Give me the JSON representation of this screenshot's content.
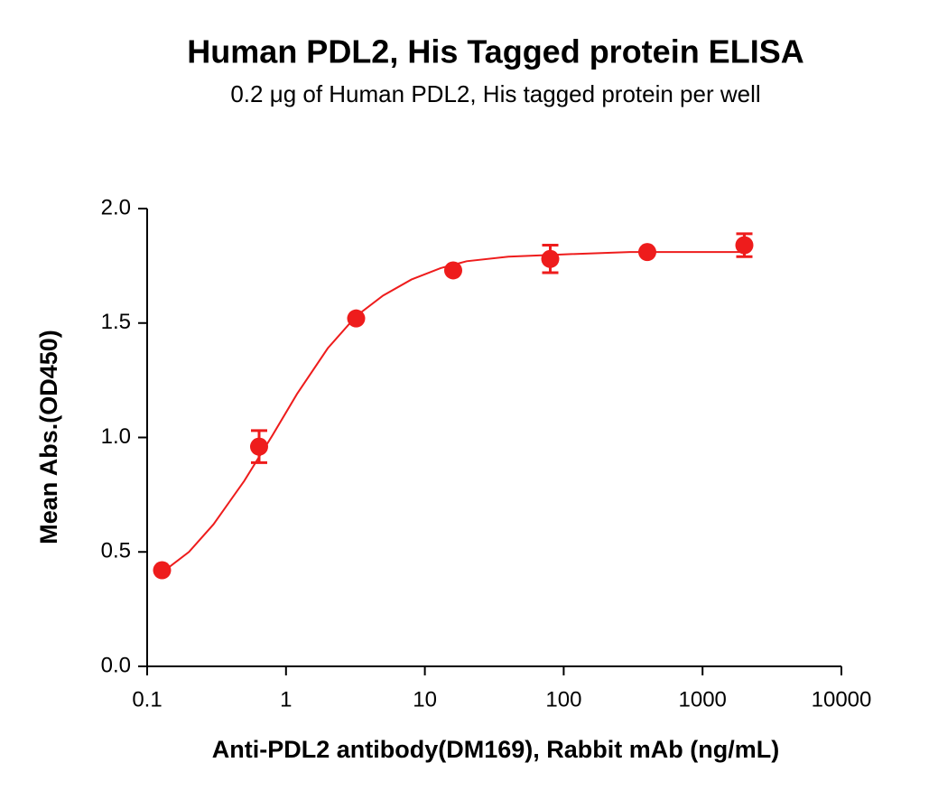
{
  "chart_data": {
    "type": "scatter",
    "title": "Human PDL2, His Tagged protein ELISA",
    "subtitle": "0.2 μg of Human PDL2, His tagged protein per well",
    "x_label": "Anti-PDL2 antibody(DM169), Rabbit mAb (ng/mL)",
    "y_label": "Mean Abs.(OD450)",
    "x_scale": "log",
    "xlim": [
      0.1,
      10000
    ],
    "xticks": [
      0.1,
      1,
      10,
      100,
      1000,
      10000
    ],
    "ylim": [
      0,
      2
    ],
    "yticks": [
      {
        "value": 0,
        "label": "0.0"
      },
      0.5,
      {
        "value": 1,
        "label": "1.0"
      },
      1.5,
      {
        "value": 2,
        "label": "2.0"
      }
    ],
    "series": [
      {
        "mode": "markers",
        "color": "#ee1c1c",
        "x": [
          0.128,
          0.64,
          3.2,
          16,
          80,
          400,
          2000
        ],
        "values": [
          0.42,
          0.96,
          1.52,
          1.73,
          1.78,
          1.81,
          1.84
        ],
        "errors": [
          0.01,
          0.07,
          0.01,
          0.01,
          0.06,
          0.01,
          0.05
        ]
      },
      {
        "mode": "line",
        "color": "#ee1c1c",
        "x": [
          0.128,
          0.2,
          0.3,
          0.5,
          0.8,
          1.2,
          2,
          3.2,
          5,
          8,
          13,
          20,
          40,
          100,
          300,
          2000
        ],
        "values": [
          0.41,
          0.5,
          0.62,
          0.81,
          1.01,
          1.19,
          1.39,
          1.53,
          1.62,
          1.69,
          1.74,
          1.77,
          1.79,
          1.8,
          1.81,
          1.81
        ]
      }
    ]
  }
}
